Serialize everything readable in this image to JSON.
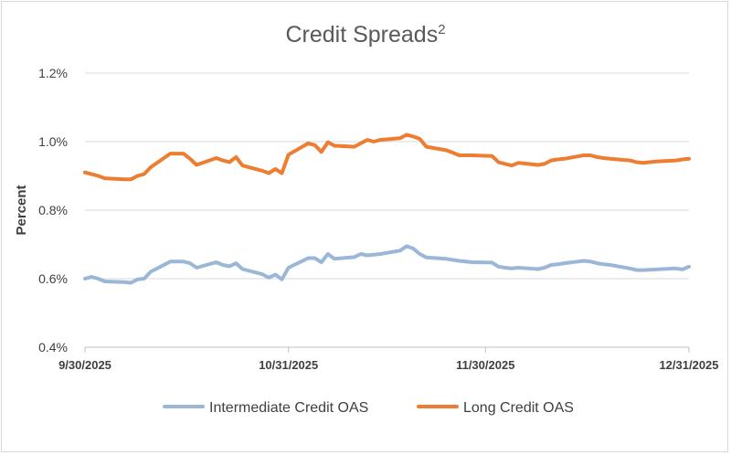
{
  "chart_data": {
    "type": "line",
    "title": "Credit Spreads",
    "title_superscript": "2",
    "ylabel": "Percent",
    "xlabel": "",
    "ylim": [
      0.4,
      1.2
    ],
    "yticks": [
      0.4,
      0.6,
      0.8,
      1.0,
      1.2
    ],
    "ytick_labels": [
      "0.4%",
      "0.6%",
      "0.8%",
      "1.0%",
      "1.2%"
    ],
    "xlim": [
      "2025-09-30",
      "2025-12-31"
    ],
    "xticks": [
      "2025-09-30",
      "2025-10-31",
      "2025-11-30",
      "2025-12-31"
    ],
    "xtick_labels": [
      "9/30/2025",
      "10/31/2025",
      "11/30/2025",
      "12/31/2025"
    ],
    "grid": "horizontal",
    "legend_position": "bottom",
    "x": [
      "2025-09-30",
      "2025-10-01",
      "2025-10-02",
      "2025-10-03",
      "2025-10-06",
      "2025-10-07",
      "2025-10-08",
      "2025-10-09",
      "2025-10-10",
      "2025-10-13",
      "2025-10-14",
      "2025-10-15",
      "2025-10-16",
      "2025-10-17",
      "2025-10-20",
      "2025-10-21",
      "2025-10-22",
      "2025-10-23",
      "2025-10-24",
      "2025-10-27",
      "2025-10-28",
      "2025-10-29",
      "2025-10-30",
      "2025-10-31",
      "2025-11-03",
      "2025-11-04",
      "2025-11-05",
      "2025-11-06",
      "2025-11-07",
      "2025-11-10",
      "2025-11-11",
      "2025-11-12",
      "2025-11-13",
      "2025-11-14",
      "2025-11-17",
      "2025-11-18",
      "2025-11-19",
      "2025-11-20",
      "2025-11-21",
      "2025-11-24",
      "2025-11-25",
      "2025-11-26",
      "2025-11-28",
      "2025-12-01",
      "2025-12-02",
      "2025-12-03",
      "2025-12-04",
      "2025-12-05",
      "2025-12-08",
      "2025-12-09",
      "2025-12-10",
      "2025-12-11",
      "2025-12-12",
      "2025-12-15",
      "2025-12-16",
      "2025-12-17",
      "2025-12-18",
      "2025-12-19",
      "2025-12-22",
      "2025-12-23",
      "2025-12-24",
      "2025-12-26",
      "2025-12-29",
      "2025-12-30",
      "2025-12-31"
    ],
    "series": [
      {
        "name": "Intermediate Credit OAS",
        "color": "#9ab7d8",
        "values": [
          0.6,
          0.605,
          0.6,
          0.592,
          0.59,
          0.588,
          0.598,
          0.6,
          0.62,
          0.65,
          0.65,
          0.65,
          0.645,
          0.632,
          0.648,
          0.64,
          0.636,
          0.645,
          0.628,
          0.613,
          0.603,
          0.612,
          0.598,
          0.632,
          0.66,
          0.66,
          0.648,
          0.672,
          0.658,
          0.663,
          0.672,
          0.668,
          0.67,
          0.672,
          0.682,
          0.695,
          0.688,
          0.672,
          0.662,
          0.658,
          0.655,
          0.652,
          0.648,
          0.647,
          0.635,
          0.632,
          0.63,
          0.632,
          0.628,
          0.632,
          0.64,
          0.642,
          0.645,
          0.652,
          0.65,
          0.645,
          0.642,
          0.64,
          0.63,
          0.625,
          0.625,
          0.627,
          0.63,
          0.627,
          0.635
        ]
      },
      {
        "name": "Long Credit OAS",
        "color": "#ed7d31",
        "values": [
          0.91,
          0.905,
          0.9,
          0.893,
          0.89,
          0.89,
          0.9,
          0.905,
          0.925,
          0.965,
          0.965,
          0.965,
          0.95,
          0.932,
          0.952,
          0.945,
          0.94,
          0.955,
          0.93,
          0.915,
          0.908,
          0.92,
          0.908,
          0.962,
          0.995,
          0.99,
          0.97,
          0.998,
          0.988,
          0.985,
          0.995,
          1.005,
          1.0,
          1.005,
          1.01,
          1.02,
          1.015,
          1.008,
          0.985,
          0.975,
          0.968,
          0.96,
          0.96,
          0.958,
          0.94,
          0.935,
          0.93,
          0.938,
          0.932,
          0.935,
          0.945,
          0.948,
          0.95,
          0.96,
          0.96,
          0.955,
          0.952,
          0.95,
          0.945,
          0.94,
          0.938,
          0.942,
          0.945,
          0.948,
          0.95
        ]
      }
    ]
  }
}
